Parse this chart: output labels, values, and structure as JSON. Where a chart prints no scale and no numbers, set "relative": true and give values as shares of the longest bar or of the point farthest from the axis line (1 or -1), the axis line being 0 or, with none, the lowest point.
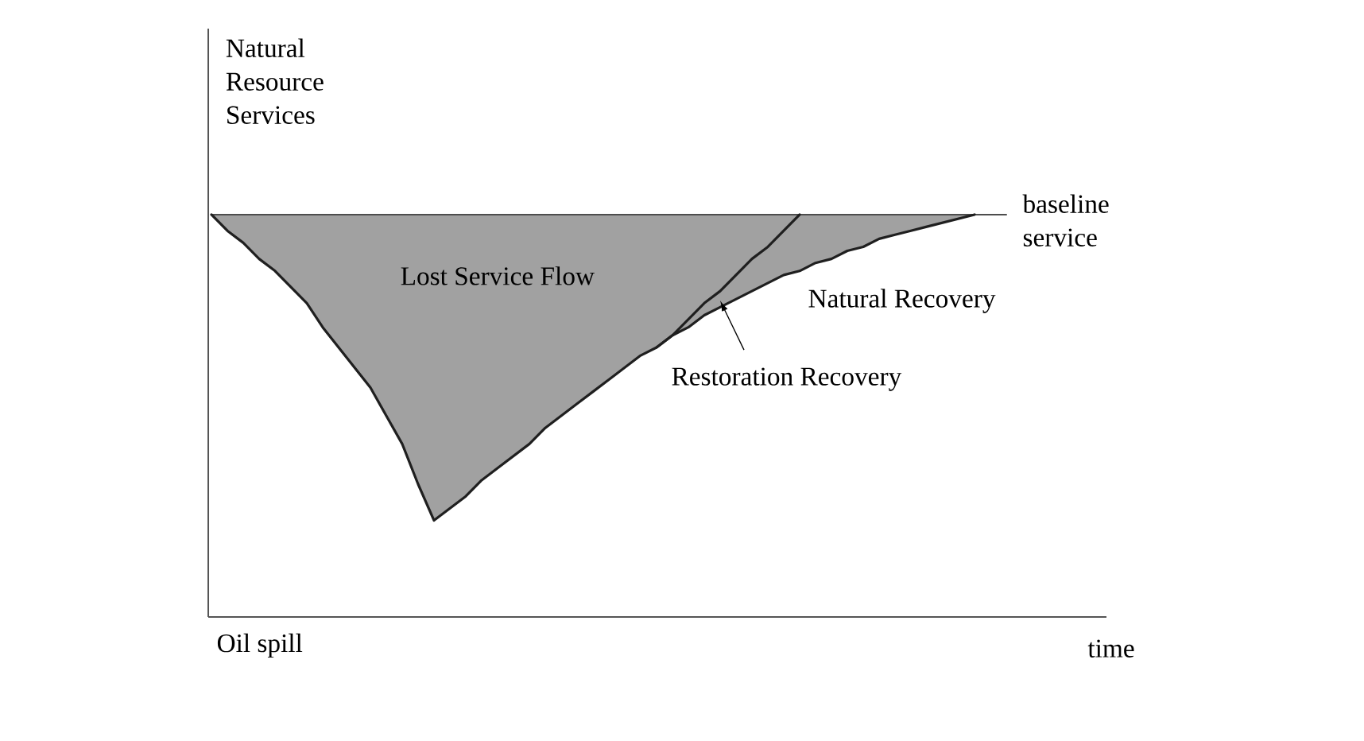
{
  "chart_data": {
    "type": "line",
    "relative": true,
    "xlabel": "time",
    "ylabel": "Natural Resource Services",
    "annotations": [
      "Lost Service Flow",
      "Oil spill"
    ],
    "categories": [
      null,
      null,
      null,
      null,
      null,
      null,
      null,
      null,
      null,
      null,
      null,
      null,
      null,
      null,
      null,
      null,
      null,
      null,
      null,
      null,
      null,
      null,
      null,
      null,
      null,
      null,
      null,
      null,
      null,
      null,
      null,
      null,
      null,
      null,
      null,
      null,
      null,
      null,
      null,
      null,
      null,
      null,
      null,
      null,
      null,
      null,
      null,
      null,
      null,
      null,
      null
    ],
    "series": [
      {
        "name": "baseline service",
        "color": "#4d4d4d",
        "values": [
          1.0,
          1.0,
          1.0,
          1.0,
          1.0,
          1.0,
          1.0,
          1.0,
          1.0,
          1.0,
          1.0,
          1.0,
          1.0,
          1.0,
          1.0,
          1.0,
          1.0,
          1.0,
          1.0,
          1.0,
          1.0,
          1.0,
          1.0,
          1.0,
          1.0,
          1.0,
          1.0,
          1.0,
          1.0,
          1.0,
          1.0,
          1.0,
          1.0,
          1.0,
          1.0,
          1.0,
          1.0,
          1.0,
          1.0,
          1.0,
          1.0,
          1.0,
          1.0,
          1.0,
          1.0,
          1.0,
          1.0,
          1.0,
          1.0,
          1.0,
          1.0
        ]
      },
      {
        "name": "Natural Recovery",
        "color": "#1f1f1f",
        "values": [
          1.0,
          0.96,
          0.93,
          0.89,
          0.86,
          0.82,
          0.78,
          0.72,
          0.67,
          0.62,
          0.57,
          0.5,
          0.43,
          0.33,
          0.24,
          0.27,
          0.3,
          0.34,
          0.37,
          0.4,
          0.43,
          0.47,
          0.5,
          0.53,
          0.56,
          0.59,
          0.62,
          0.65,
          0.67,
          0.7,
          0.72,
          0.75,
          0.77,
          0.79,
          0.81,
          0.83,
          0.85,
          0.86,
          0.88,
          0.89,
          0.91,
          0.92,
          0.94,
          0.95,
          0.96,
          0.97,
          0.98,
          0.99,
          1.0,
          null,
          null
        ],
        "lower": [
          1.0,
          0.96,
          0.93,
          0.89,
          0.86,
          0.82,
          0.78,
          0.72,
          0.67,
          0.62,
          0.57,
          0.5,
          0.43,
          0.33,
          0.24,
          0.27,
          0.3,
          0.34,
          0.37,
          0.4,
          0.43,
          0.47,
          0.5,
          0.53,
          0.56,
          0.59,
          0.62,
          0.65,
          0.67,
          0.7,
          0.72,
          0.75,
          0.77,
          0.79,
          0.81,
          0.83,
          0.85,
          0.86,
          0.88,
          0.89,
          0.91,
          0.92,
          0.94,
          0.95,
          0.96,
          0.97,
          0.98,
          0.99,
          1.0,
          null,
          null
        ],
        "upper": [
          1.0,
          1.0,
          1.0,
          1.0,
          1.0,
          1.0,
          1.0,
          1.0,
          1.0,
          1.0,
          1.0,
          1.0,
          1.0,
          1.0,
          1.0,
          1.0,
          1.0,
          1.0,
          1.0,
          1.0,
          1.0,
          1.0,
          1.0,
          1.0,
          1.0,
          1.0,
          1.0,
          1.0,
          1.0,
          1.0,
          1.0,
          1.0,
          1.0,
          1.0,
          1.0,
          1.0,
          1.0,
          1.0,
          1.0,
          1.0,
          1.0,
          1.0,
          1.0,
          1.0,
          1.0,
          1.0,
          1.0,
          1.0,
          1.0,
          null,
          null
        ]
      },
      {
        "name": "Restoration Recovery",
        "color": "#1f1f1f",
        "values": [
          null,
          null,
          null,
          null,
          null,
          null,
          null,
          null,
          null,
          null,
          null,
          null,
          null,
          null,
          null,
          null,
          null,
          null,
          null,
          null,
          null,
          null,
          null,
          null,
          null,
          null,
          null,
          null,
          0.67,
          0.7,
          0.74,
          0.78,
          0.81,
          0.85,
          0.89,
          0.92,
          0.96,
          1.0,
          null,
          null,
          null,
          null,
          null,
          null,
          null,
          null,
          null,
          null,
          null,
          null,
          null
        ]
      }
    ]
  }
}
